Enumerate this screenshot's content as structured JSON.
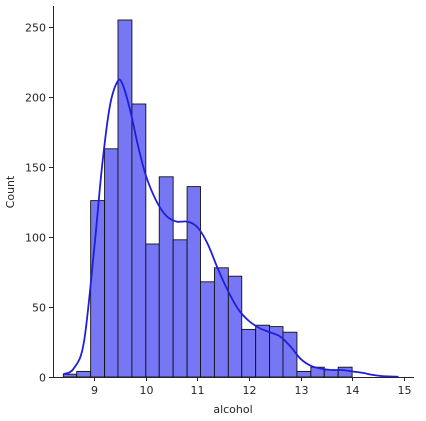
{
  "chart_data": {
    "type": "bar",
    "subtype": "histogram-with-kde",
    "title": "",
    "xlabel": "alcohol",
    "ylabel": "Count",
    "xlim": [
      8.2,
      15.2
    ],
    "ylim": [
      0,
      265
    ],
    "x_ticks": [
      9,
      10,
      11,
      12,
      13,
      14,
      15
    ],
    "y_ticks": [
      0,
      50,
      100,
      150,
      200,
      250
    ],
    "grid": false,
    "bar_color": "#7777f5",
    "bar_edge_color": "#111111",
    "kde_color": "#1f1fdb",
    "bins": [
      {
        "start": 8.4,
        "end": 8.66,
        "count": 2
      },
      {
        "start": 8.66,
        "end": 8.93,
        "count": 4
      },
      {
        "start": 8.93,
        "end": 9.2,
        "count": 126
      },
      {
        "start": 9.2,
        "end": 9.46,
        "count": 163
      },
      {
        "start": 9.46,
        "end": 9.73,
        "count": 255
      },
      {
        "start": 9.73,
        "end": 10.0,
        "count": 195
      },
      {
        "start": 10.0,
        "end": 10.26,
        "count": 95
      },
      {
        "start": 10.26,
        "end": 10.53,
        "count": 143
      },
      {
        "start": 10.53,
        "end": 10.8,
        "count": 98
      },
      {
        "start": 10.8,
        "end": 11.06,
        "count": 136
      },
      {
        "start": 11.06,
        "end": 11.33,
        "count": 68
      },
      {
        "start": 11.33,
        "end": 11.6,
        "count": 78
      },
      {
        "start": 11.6,
        "end": 11.86,
        "count": 72
      },
      {
        "start": 11.86,
        "end": 12.13,
        "count": 34
      },
      {
        "start": 12.13,
        "end": 12.4,
        "count": 37
      },
      {
        "start": 12.4,
        "end": 12.66,
        "count": 36
      },
      {
        "start": 12.66,
        "end": 12.93,
        "count": 32
      },
      {
        "start": 12.93,
        "end": 13.2,
        "count": 4
      },
      {
        "start": 13.2,
        "end": 13.46,
        "count": 7
      },
      {
        "start": 13.46,
        "end": 13.73,
        "count": 5
      },
      {
        "start": 13.73,
        "end": 14.0,
        "count": 7
      }
    ],
    "kde_curve": {
      "x": [
        8.4,
        8.6,
        8.8,
        9.0,
        9.15,
        9.3,
        9.45,
        9.55,
        9.7,
        9.85,
        10.0,
        10.2,
        10.4,
        10.6,
        10.8,
        11.0,
        11.2,
        11.4,
        11.6,
        11.8,
        12.0,
        12.2,
        12.4,
        12.6,
        12.8,
        13.0,
        13.2,
        13.4,
        13.6,
        13.8,
        14.0,
        14.2,
        14.4,
        14.6,
        14.9
      ],
      "y": [
        2,
        6,
        25,
        92,
        150,
        193,
        211,
        209,
        190,
        165,
        144,
        126,
        115,
        111,
        111,
        107,
        95,
        77,
        61,
        48,
        40,
        35,
        32,
        29,
        22,
        13,
        8,
        6,
        5,
        5,
        4,
        3,
        1.5,
        0.6,
        0.2
      ]
    }
  }
}
